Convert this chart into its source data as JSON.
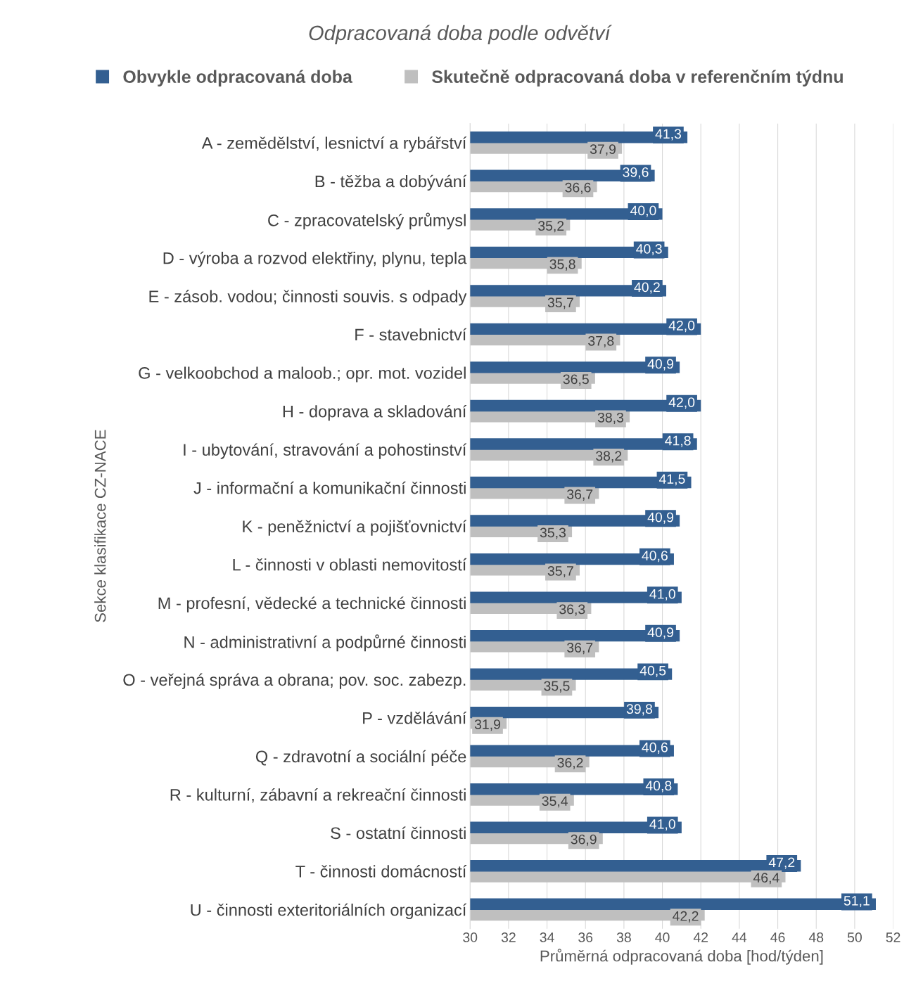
{
  "chart_data": {
    "type": "bar",
    "orientation": "horizontal",
    "title": "Odpracovaná doba podle odvětví",
    "xlabel": "Průměrná odpracovaná doba [hod/týden]",
    "ylabel": "Sekce klasifikace CZ-NACE",
    "categories": [
      "A - zemědělství, lesnictví a rybářství",
      "B - těžba a dobývání",
      "C - zpracovatelský průmysl",
      "D - výroba a rozvod elektřiny, plynu, tepla",
      "E - zásob. vodou; činnosti souvis. s odpady",
      "F - stavebnictví",
      "G - velkoobchod a maloob.; opr. mot. vozidel",
      "H - doprava a skladování",
      "I - ubytování, stravování a pohostinství",
      "J - informační a komunikační činnosti",
      "K - peněžnictví a pojišťovnictví",
      "L - činnosti v oblasti nemovitostí",
      "M - profesní, vědecké a technické činnosti",
      "N - administrativní a podpůrné činnosti",
      "O - veřejná správa a obrana; pov. soc. zabezp.",
      "P - vzdělávání",
      "Q - zdravotní a sociální péče",
      "R - kulturní, zábavní a rekreační činnosti",
      "S - ostatní činnosti",
      "T - činnosti domácností",
      "U - činnosti exteritoriálních organizací"
    ],
    "series": [
      {
        "name": "Obvykle odpracovaná doba",
        "color": "#335f91",
        "values": [
          41.3,
          39.6,
          40.0,
          40.3,
          40.2,
          42.0,
          40.9,
          42.0,
          41.8,
          41.5,
          40.9,
          40.6,
          41.0,
          40.9,
          40.5,
          39.8,
          40.6,
          40.8,
          41.0,
          47.2,
          51.1
        ],
        "value_labels": [
          "41,3",
          "39,6",
          "40,0",
          "40,3",
          "40,2",
          "42,0",
          "40,9",
          "42,0",
          "41,8",
          "41,5",
          "40,9",
          "40,6",
          "41,0",
          "40,9",
          "40,5",
          "39,8",
          "40,6",
          "40,8",
          "41,0",
          "47,2",
          "51,1"
        ]
      },
      {
        "name": "Skutečně odpracovaná doba v referenčním týdnu",
        "color": "#bfbfbf",
        "values": [
          37.9,
          36.6,
          35.2,
          35.8,
          35.7,
          37.8,
          36.5,
          38.3,
          38.2,
          36.7,
          35.3,
          35.7,
          36.3,
          36.7,
          35.5,
          31.9,
          36.2,
          35.4,
          36.9,
          46.4,
          42.2
        ],
        "value_labels": [
          "37,9",
          "36,6",
          "35,2",
          "35,8",
          "35,7",
          "37,8",
          "36,5",
          "38,3",
          "38,2",
          "36,7",
          "35,3",
          "35,7",
          "36,3",
          "36,7",
          "35,5",
          "31,9",
          "36,2",
          "35,4",
          "36,9",
          "46,4",
          "42,2"
        ]
      }
    ],
    "xlim": [
      30,
      52
    ],
    "xticks": [
      30,
      32,
      34,
      36,
      38,
      40,
      42,
      44,
      46,
      48,
      50,
      52
    ],
    "grid": "x",
    "legend": "top"
  }
}
